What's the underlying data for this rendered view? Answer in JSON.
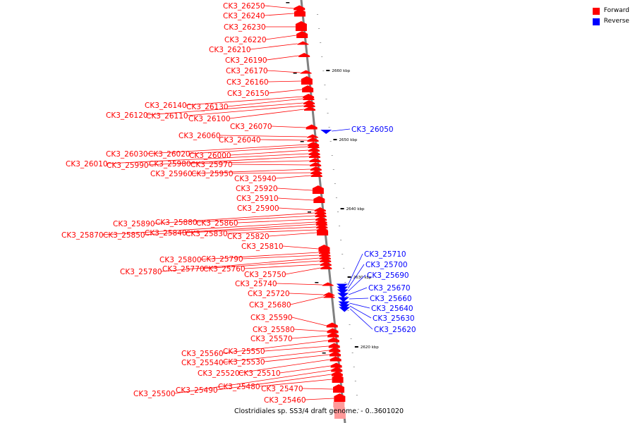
{
  "caption": "Clostridiales sp. SS3/4 draft genome. - 0..3601020",
  "legend": [
    {
      "label": "Forward",
      "color": "#ff0000"
    },
    {
      "label": "Reverse",
      "color": "#0000ff"
    }
  ],
  "colors": {
    "forward": "#ff0000",
    "reverse": "#0000ff",
    "backbone": "#808080",
    "tick": "#000000"
  },
  "kbp_ticks": [
    {
      "kbp": 2660,
      "label": "2660 kbp"
    },
    {
      "kbp": 2650,
      "label": "2650 kbp"
    },
    {
      "kbp": 2640,
      "label": "2640 kbp"
    },
    {
      "kbp": 2630,
      "label": "2630 kbp"
    },
    {
      "kbp": 2620,
      "label": "2620 kbp"
    }
  ],
  "forward_genes": [
    {
      "label": "CK3_26250"
    },
    {
      "label": "CK3_26240"
    },
    {
      "label": "CK3_26230"
    },
    {
      "label": "CK3_26220"
    },
    {
      "label": "CK3_26210"
    },
    {
      "label": "CK3_26190"
    },
    {
      "label": "CK3_26170"
    },
    {
      "label": "CK3_26160"
    },
    {
      "label": "CK3_26150"
    },
    {
      "label": "CK3_26140"
    },
    {
      "label": "CK3_26130"
    },
    {
      "label": "CK3_26120"
    },
    {
      "label": "CK3_26110"
    },
    {
      "label": "CK3_26100"
    },
    {
      "label": "CK3_26070"
    },
    {
      "label": "CK3_26060"
    },
    {
      "label": "CK3_26040"
    },
    {
      "label": "CK3_26030"
    },
    {
      "label": "CK3_26020"
    },
    {
      "label": "CK3_26000"
    },
    {
      "label": "CK3_26010"
    },
    {
      "label": "CK3_25990"
    },
    {
      "label": "CK3_25980"
    },
    {
      "label": "CK3_25970"
    },
    {
      "label": "CK3_25960"
    },
    {
      "label": "CK3_25950"
    },
    {
      "label": "CK3_25940"
    },
    {
      "label": "CK3_25920"
    },
    {
      "label": "CK3_25910"
    },
    {
      "label": "CK3_25900"
    },
    {
      "label": "CK3_25890"
    },
    {
      "label": "CK3_25880"
    },
    {
      "label": "CK3_25860"
    },
    {
      "label": "CK3_25870"
    },
    {
      "label": "CK3_25850"
    },
    {
      "label": "CK3_25840"
    },
    {
      "label": "CK3_25830"
    },
    {
      "label": "CK3_25820"
    },
    {
      "label": "CK3_25810"
    },
    {
      "label": "CK3_25800"
    },
    {
      "label": "CK3_25790"
    },
    {
      "label": "CK3_25780"
    },
    {
      "label": "CK3_25770"
    },
    {
      "label": "CK3_25760"
    },
    {
      "label": "CK3_25750"
    },
    {
      "label": "CK3_25740"
    },
    {
      "label": "CK3_25720"
    },
    {
      "label": "CK3_25680"
    },
    {
      "label": "CK3_25590"
    },
    {
      "label": "CK3_25580"
    },
    {
      "label": "CK3_25570"
    },
    {
      "label": "CK3_25560"
    },
    {
      "label": "CK3_25550"
    },
    {
      "label": "CK3_25540"
    },
    {
      "label": "CK3_25530"
    },
    {
      "label": "CK3_25520"
    },
    {
      "label": "CK3_25510"
    },
    {
      "label": "CK3_25500"
    },
    {
      "label": "CK3_25490"
    },
    {
      "label": "CK3_25480"
    },
    {
      "label": "CK3_25470"
    },
    {
      "label": "CK3_25460"
    }
  ],
  "reverse_genes": [
    {
      "label": "CK3_26050"
    },
    {
      "label": "CK3_25710"
    },
    {
      "label": "CK3_25700"
    },
    {
      "label": "CK3_25690"
    },
    {
      "label": "CK3_25670"
    },
    {
      "label": "CK3_25660"
    },
    {
      "label": "CK3_25640"
    },
    {
      "label": "CK3_25630"
    },
    {
      "label": "CK3_25620"
    }
  ]
}
